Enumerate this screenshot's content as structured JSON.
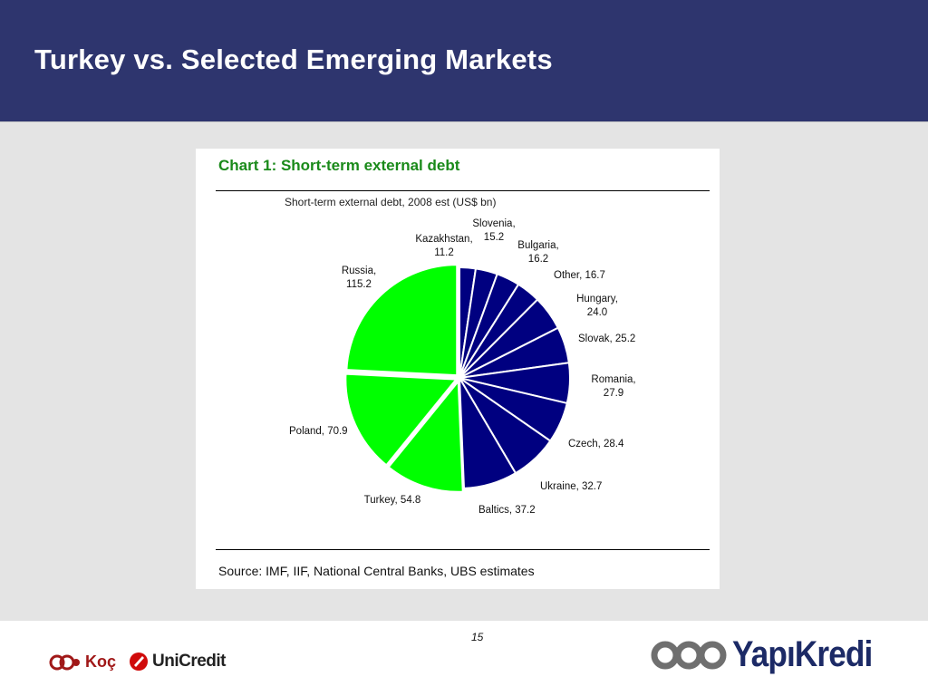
{
  "slide": {
    "title": "Turkey vs. Selected Emerging Markets",
    "page_number": "15"
  },
  "logos": {
    "koc": "Koç",
    "unicredit": "UniCredit",
    "yapikredi": "YapıKredi"
  },
  "colors": {
    "header": "#2e356e",
    "highlight_slice": "#00ff00",
    "other_slice": "#000080",
    "chart_heading": "#1a8a1a"
  },
  "chart_data": {
    "type": "pie",
    "title": "Chart 1: Short-term external debt",
    "subtitle": "Short-term external debt, 2008 est (US$ bn)",
    "source": "Source: IMF, IIF, National Central Banks, UBS estimates",
    "slices": [
      {
        "label": "Kazakhstan",
        "value": 11.2,
        "text": [
          "Kazakhstan,",
          "11.2"
        ],
        "color": "#000080",
        "highlight": false
      },
      {
        "label": "Slovenia",
        "value": 15.2,
        "text": [
          "Slovenia,",
          "15.2"
        ],
        "color": "#000080",
        "highlight": false
      },
      {
        "label": "Bulgaria",
        "value": 16.2,
        "text": [
          "Bulgaria,",
          "16.2"
        ],
        "color": "#000080",
        "highlight": false
      },
      {
        "label": "Other",
        "value": 16.7,
        "text": [
          "Other, 16.7"
        ],
        "color": "#000080",
        "highlight": false
      },
      {
        "label": "Hungary",
        "value": 24.0,
        "text": [
          "Hungary,",
          "24.0"
        ],
        "color": "#000080",
        "highlight": false
      },
      {
        "label": "Slovak",
        "value": 25.2,
        "text": [
          "Slovak, 25.2"
        ],
        "color": "#000080",
        "highlight": false
      },
      {
        "label": "Romania",
        "value": 27.9,
        "text": [
          "Romania,",
          "27.9"
        ],
        "color": "#000080",
        "highlight": false
      },
      {
        "label": "Czech",
        "value": 28.4,
        "text": [
          "Czech, 28.4"
        ],
        "color": "#000080",
        "highlight": false
      },
      {
        "label": "Ukraine",
        "value": 32.7,
        "text": [
          "Ukraine, 32.7"
        ],
        "color": "#000080",
        "highlight": false
      },
      {
        "label": "Baltics",
        "value": 37.2,
        "text": [
          "Baltics, 37.2"
        ],
        "color": "#000080",
        "highlight": false
      },
      {
        "label": "Turkey",
        "value": 54.8,
        "text": [
          "Turkey, 54.8"
        ],
        "color": "#00ff00",
        "highlight": true
      },
      {
        "label": "Poland",
        "value": 70.9,
        "text": [
          "Poland, 70.9"
        ],
        "color": "#00ff00",
        "highlight": true
      },
      {
        "label": "Russia",
        "value": 115.2,
        "text": [
          "Russia,",
          "115.2"
        ],
        "color": "#00ff00",
        "highlight": true
      }
    ],
    "start": "12 o'clock",
    "direction": "clockwise"
  }
}
